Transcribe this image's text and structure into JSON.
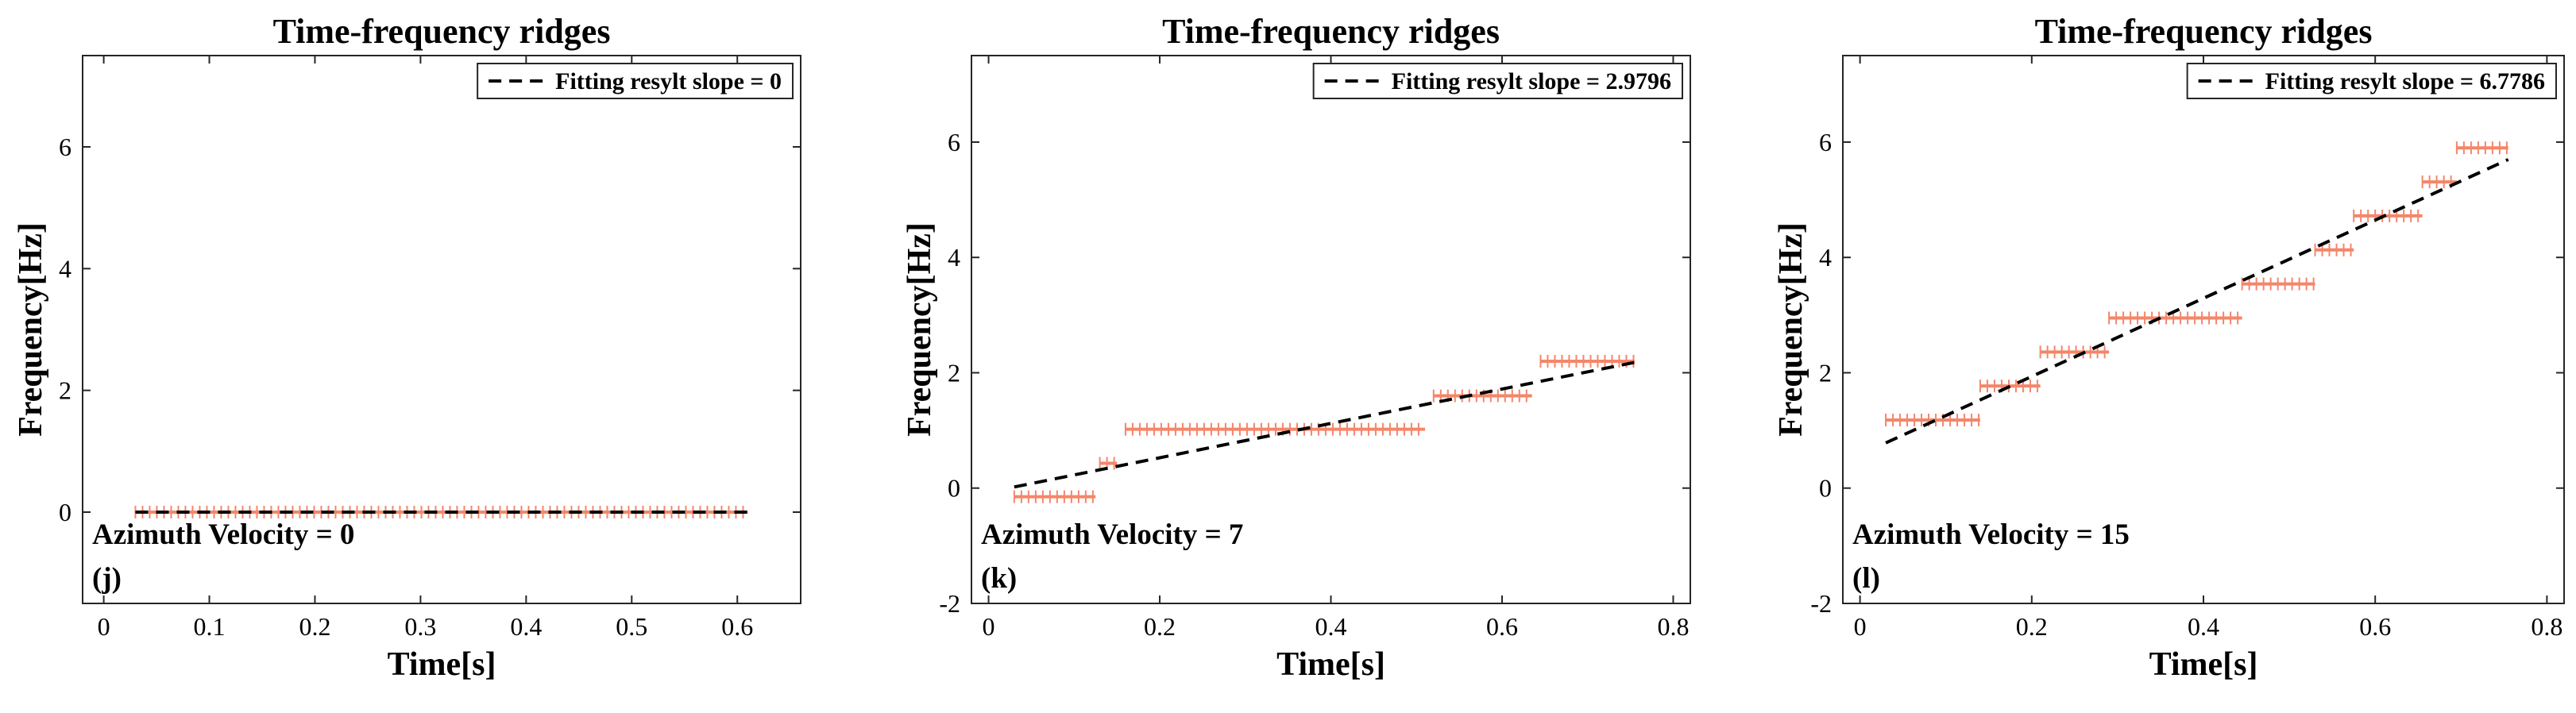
{
  "chart_data": [
    {
      "type": "scatter",
      "title": "Time-frequency ridges",
      "xlabel": "Time[s]",
      "ylabel": "Frequency[Hz]",
      "xlim": [
        -0.02,
        0.66
      ],
      "ylim": [
        -1.5,
        7.5
      ],
      "xticks": [
        0,
        0.1,
        0.2,
        0.3,
        0.4,
        0.5,
        0.6
      ],
      "xtick_labels": [
        "0",
        "0.1",
        "0.2",
        "0.3",
        "0.4",
        "0.5",
        "0.6"
      ],
      "yticks": [
        0,
        2,
        4,
        6
      ],
      "ytick_labels": [
        "0",
        "2",
        "4",
        "6"
      ],
      "legend": {
        "label": "Fitting resylt slope = 0",
        "position": "top-right"
      },
      "annotations": [
        "Azimuth Velocity = 0",
        "(j)"
      ],
      "ridge_segments": [
        {
          "t_start": 0.03,
          "t_end": 0.61,
          "freq": 0.0
        }
      ],
      "fit_line": {
        "slope": 0,
        "intercept": 0.0,
        "t_start": 0.03,
        "t_end": 0.61
      }
    },
    {
      "type": "scatter",
      "title": "Time-frequency ridges",
      "xlabel": "Time[s]",
      "ylabel": "Frequency[Hz]",
      "xlim": [
        -0.02,
        0.82
      ],
      "ylim": [
        -2,
        7.5
      ],
      "xticks": [
        0,
        0.2,
        0.4,
        0.6,
        0.8
      ],
      "xtick_labels": [
        "0",
        "0.2",
        "0.4",
        "0.6",
        "0.8"
      ],
      "yticks": [
        -2,
        0,
        2,
        4,
        6
      ],
      "ytick_labels": [
        "-2",
        "0",
        "2",
        "4",
        "6"
      ],
      "legend": {
        "label": "Fitting resylt slope = 2.9796",
        "position": "top-right"
      },
      "annotations": [
        "Azimuth Velocity = 7",
        "(k)"
      ],
      "ridge_segments": [
        {
          "t_start": 0.03,
          "t_end": 0.125,
          "freq": -0.15
        },
        {
          "t_start": 0.13,
          "t_end": 0.15,
          "freq": 0.43
        },
        {
          "t_start": 0.16,
          "t_end": 0.51,
          "freq": 1.02
        },
        {
          "t_start": 0.52,
          "t_end": 0.635,
          "freq": 1.6
        },
        {
          "t_start": 0.645,
          "t_end": 0.755,
          "freq": 2.2
        }
      ],
      "fit_line": {
        "slope": 2.9796,
        "intercept": -0.07,
        "t_start": 0.03,
        "t_end": 0.755
      }
    },
    {
      "type": "scatter",
      "title": "Time-frequency ridges",
      "xlabel": "Time[s]",
      "ylabel": "Frequency[Hz]",
      "xlim": [
        -0.02,
        0.82
      ],
      "ylim": [
        -2,
        7.5
      ],
      "xticks": [
        0,
        0.2,
        0.4,
        0.6,
        0.8
      ],
      "xtick_labels": [
        "0",
        "0.2",
        "0.4",
        "0.6",
        "0.8"
      ],
      "yticks": [
        -2,
        0,
        2,
        4,
        6
      ],
      "ytick_labels": [
        "-2",
        "0",
        "2",
        "4",
        "6"
      ],
      "legend": {
        "label": "Fitting resylt slope = 6.7786",
        "position": "top-right"
      },
      "annotations": [
        "Azimuth Velocity = 15",
        "(l)"
      ],
      "ridge_segments": [
        {
          "t_start": 0.03,
          "t_end": 0.14,
          "freq": 1.18
        },
        {
          "t_start": 0.14,
          "t_end": 0.21,
          "freq": 1.77
        },
        {
          "t_start": 0.21,
          "t_end": 0.29,
          "freq": 2.36
        },
        {
          "t_start": 0.29,
          "t_end": 0.445,
          "freq": 2.95
        },
        {
          "t_start": 0.445,
          "t_end": 0.53,
          "freq": 3.54
        },
        {
          "t_start": 0.53,
          "t_end": 0.575,
          "freq": 4.13
        },
        {
          "t_start": 0.575,
          "t_end": 0.655,
          "freq": 4.72
        },
        {
          "t_start": 0.655,
          "t_end": 0.695,
          "freq": 5.31
        },
        {
          "t_start": 0.695,
          "t_end": 0.755,
          "freq": 5.9
        }
      ],
      "fit_line": {
        "slope": 6.7786,
        "intercept": 0.58,
        "t_start": 0.03,
        "t_end": 0.755
      }
    }
  ]
}
